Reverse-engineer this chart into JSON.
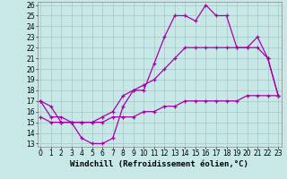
{
  "line1_x": [
    0,
    1,
    2,
    3,
    4,
    5,
    6,
    7,
    8,
    9,
    10,
    11,
    12,
    13,
    14,
    15,
    16,
    17,
    18,
    19,
    20,
    21,
    22,
    23
  ],
  "line1_y": [
    17,
    16.5,
    15,
    15,
    13.5,
    13,
    13,
    13.5,
    16.5,
    18,
    18,
    20.5,
    23,
    25,
    25,
    24.5,
    26,
    25,
    25,
    22,
    22,
    23,
    21,
    17.5
  ],
  "line2_x": [
    0,
    1,
    2,
    3,
    4,
    5,
    6,
    7,
    8,
    9,
    10,
    11,
    12,
    13,
    14,
    15,
    16,
    17,
    18,
    19,
    20,
    21,
    22,
    23
  ],
  "line2_y": [
    17,
    15.5,
    15.5,
    15,
    15,
    15,
    15.5,
    16,
    17.5,
    18,
    18.5,
    19,
    20,
    21,
    22,
    22,
    22,
    22,
    22,
    22,
    22,
    22,
    21,
    17.5
  ],
  "line3_x": [
    0,
    1,
    2,
    3,
    4,
    5,
    6,
    7,
    8,
    9,
    10,
    11,
    12,
    13,
    14,
    15,
    16,
    17,
    18,
    19,
    20,
    21,
    22,
    23
  ],
  "line3_y": [
    15.5,
    15,
    15,
    15,
    15,
    15,
    15,
    15.5,
    15.5,
    15.5,
    16,
    16,
    16.5,
    16.5,
    17,
    17,
    17,
    17,
    17,
    17,
    17.5,
    17.5,
    17.5,
    17.5
  ],
  "xlabel": "Windchill (Refroidissement éolien,°C)",
  "xlim": [
    -0.3,
    23.3
  ],
  "ylim": [
    12.7,
    26.3
  ],
  "yticks": [
    13,
    14,
    15,
    16,
    17,
    18,
    19,
    20,
    21,
    22,
    23,
    24,
    25,
    26
  ],
  "xticks": [
    0,
    1,
    2,
    3,
    4,
    5,
    6,
    7,
    8,
    9,
    10,
    11,
    12,
    13,
    14,
    15,
    16,
    17,
    18,
    19,
    20,
    21,
    22,
    23
  ],
  "bg_color": "#c8e8e8",
  "grid_color": "#a0c8c8",
  "line_color": "#aa00aa",
  "xlabel_fontsize": 6.5,
  "tick_fontsize": 5.5
}
